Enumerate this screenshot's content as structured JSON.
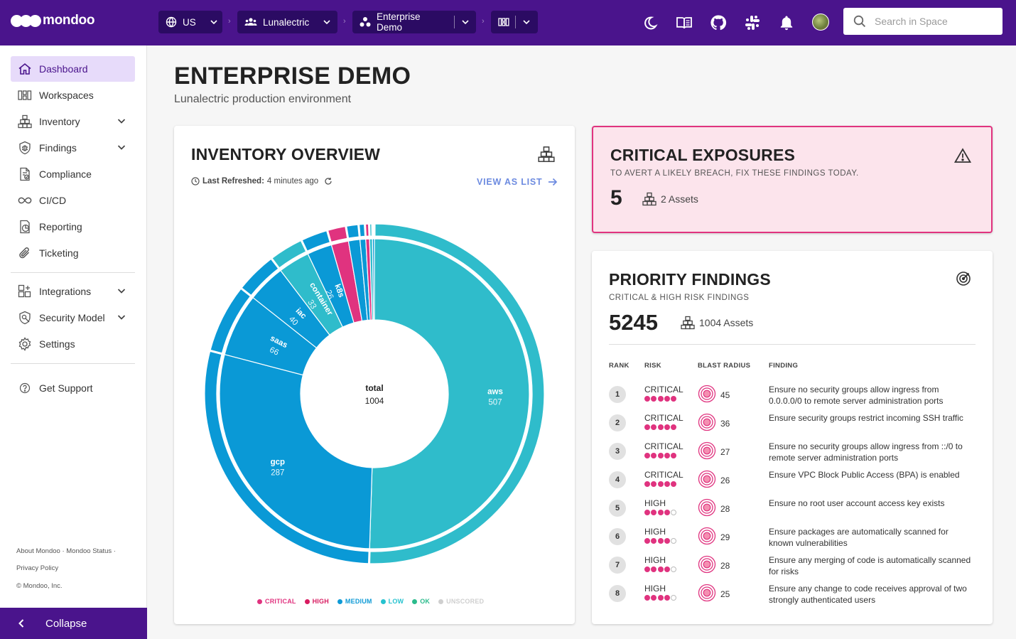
{
  "brand": {
    "name": "mondoo"
  },
  "topbar": {
    "region": "US",
    "org": "Lunalectric",
    "space": "Enterprise Demo",
    "search_placeholder": "Search in Space",
    "icons": [
      "moon-icon",
      "book-icon",
      "github-icon",
      "slack-icon",
      "bell-icon",
      "avatar"
    ]
  },
  "sidebar": {
    "items": [
      {
        "label": "Dashboard",
        "icon": "home-icon",
        "active": true
      },
      {
        "label": "Workspaces",
        "icon": "workspaces-icon"
      },
      {
        "label": "Inventory",
        "icon": "inventory-icon",
        "expandable": true
      },
      {
        "label": "Findings",
        "icon": "findings-icon",
        "expandable": true
      },
      {
        "label": "Compliance",
        "icon": "compliance-icon"
      },
      {
        "label": "CI/CD",
        "icon": "infinity-icon"
      },
      {
        "label": "Reporting",
        "icon": "reporting-icon"
      },
      {
        "label": "Ticketing",
        "icon": "paperclip-icon"
      },
      {
        "label": "Integrations",
        "icon": "integrations-icon",
        "expandable": true
      },
      {
        "label": "Security Model",
        "icon": "security-model-icon",
        "expandable": true
      },
      {
        "label": "Settings",
        "icon": "gear-icon"
      },
      {
        "label": "Get Support",
        "icon": "help-icon"
      }
    ],
    "footer": {
      "about": "About Mondoo",
      "dot1": "·",
      "status": "Mondoo Status",
      "dot2": "·",
      "privacy": "Privacy Policy",
      "copyright": "© Mondoo, Inc."
    },
    "collapse_label": "Collapse"
  },
  "page": {
    "title": "ENTERPRISE DEMO",
    "subtitle": "Lunalectric production environment"
  },
  "inventory": {
    "title": "INVENTORY OVERVIEW",
    "refreshed_label": "Last Refreshed:",
    "refreshed_value": "4 minutes ago",
    "view_as_list": "VIEW AS LIST",
    "center_label": "total",
    "center_value": "1004",
    "legend": [
      {
        "label": "CRITICAL",
        "color": "#e0337f"
      },
      {
        "label": "HIGH",
        "color": "#d81b60"
      },
      {
        "label": "MEDIUM",
        "color": "#0e9ad6"
      },
      {
        "label": "LOW",
        "color": "#26c2cf"
      },
      {
        "label": "OK",
        "color": "#2bbb8c"
      },
      {
        "label": "UNSCORED",
        "color": "#cfcfcf"
      }
    ]
  },
  "chart_data": {
    "type": "pie",
    "title": "INVENTORY OVERVIEW",
    "center": {
      "label": "total",
      "value": 1004
    },
    "categories": [
      "aws",
      "gcp",
      "saas",
      "iac",
      "container",
      "k8s"
    ],
    "values": [
      507,
      287,
      66,
      40,
      33,
      26
    ],
    "other_values": [
      18,
      12,
      6,
      4,
      3,
      2
    ],
    "colors": {
      "aws": "#2fbccb",
      "gcp": "#0a99d6",
      "saas": "#0a99d6",
      "iac": "#0a99d6",
      "container": "#2fbccb",
      "k8s": "#0a99d6"
    }
  },
  "exposures": {
    "title": "CRITICAL EXPOSURES",
    "subtitle": "TO AVERT A LIKELY BREACH, FIX THESE FINDINGS TODAY.",
    "count": "5",
    "assets": "2 Assets"
  },
  "priority": {
    "title": "PRIORITY FINDINGS",
    "subtitle": "CRITICAL & HIGH RISK FINDINGS",
    "count": "5245",
    "assets": "1004 Assets",
    "headers": {
      "rank": "RANK",
      "risk": "RISK",
      "blast": "BLAST RADIUS",
      "finding": "FINDING"
    },
    "rows": [
      {
        "rank": "1",
        "risk": "CRITICAL",
        "level": 5,
        "blast": "45",
        "finding": "Ensure no security groups allow ingress from 0.0.0.0/0 to remote server administration ports"
      },
      {
        "rank": "2",
        "risk": "CRITICAL",
        "level": 5,
        "blast": "36",
        "finding": "Ensure security groups restrict incoming SSH traffic"
      },
      {
        "rank": "3",
        "risk": "CRITICAL",
        "level": 5,
        "blast": "27",
        "finding": "Ensure no security groups allow ingress from ::/0 to remote server administration ports"
      },
      {
        "rank": "4",
        "risk": "CRITICAL",
        "level": 5,
        "blast": "26",
        "finding": "Ensure VPC Block Public Access (BPA) is enabled"
      },
      {
        "rank": "5",
        "risk": "HIGH",
        "level": 4,
        "blast": "28",
        "finding": "Ensure no root user account access key exists"
      },
      {
        "rank": "6",
        "risk": "HIGH",
        "level": 4,
        "blast": "29",
        "finding": "Ensure packages are automatically scanned for known vulnerabilities"
      },
      {
        "rank": "7",
        "risk": "HIGH",
        "level": 4,
        "blast": "28",
        "finding": "Ensure any merging of code is automatically scanned for risks"
      },
      {
        "rank": "8",
        "risk": "HIGH",
        "level": 4,
        "blast": "25",
        "finding": "Ensure any change to code receives approval of two strongly authenticated users"
      }
    ]
  }
}
